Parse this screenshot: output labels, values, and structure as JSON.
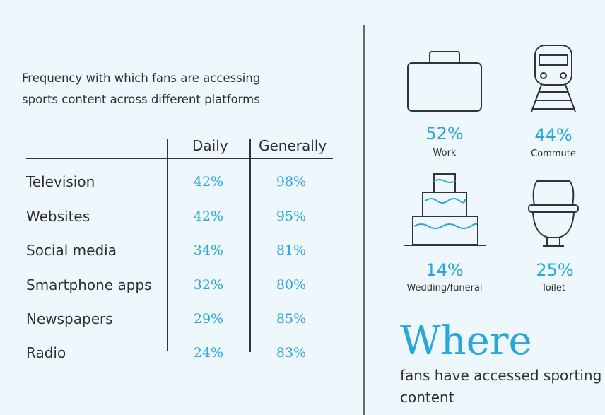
{
  "intro": {
    "line1": "Frequency with which fans are accessing",
    "line2": "sports content across different platforms"
  },
  "table": {
    "headers": [
      "Daily",
      "Generally"
    ],
    "rows": [
      {
        "label": "Television",
        "daily": "42%",
        "generally": "98%"
      },
      {
        "label": "Websites",
        "daily": "42%",
        "generally": "95%"
      },
      {
        "label": "Social media",
        "daily": "34%",
        "generally": "81%"
      },
      {
        "label": "Smartphone apps",
        "daily": "32%",
        "generally": "80%"
      },
      {
        "label": "Newspapers",
        "daily": "29%",
        "generally": "85%"
      },
      {
        "label": "Radio",
        "daily": "24%",
        "generally": "83%"
      }
    ]
  },
  "places": [
    {
      "pct": "52%",
      "label": "Work",
      "icon": "briefcase-icon"
    },
    {
      "pct": "44%",
      "label": "Commute",
      "icon": "train-icon"
    },
    {
      "pct": "14%",
      "label": "Wedding/funeral",
      "icon": "cake-icon"
    },
    {
      "pct": "25%",
      "label": "Toilet",
      "icon": "toilet-icon"
    }
  ],
  "where": {
    "title": "Where",
    "subtitle": "fans have accessed sporting content"
  },
  "colors": {
    "accent": "#2aa7d9",
    "background": "#eef7fb",
    "text": "#2f2f2f"
  },
  "chart_data": {
    "type": "table",
    "columns": [
      "Daily",
      "Generally"
    ],
    "rows": [
      "Television",
      "Websites",
      "Social media",
      "Smartphone apps",
      "Newspapers",
      "Radio"
    ],
    "values": [
      [
        42,
        98
      ],
      [
        42,
        95
      ],
      [
        34,
        81
      ],
      [
        32,
        80
      ],
      [
        29,
        85
      ],
      [
        24,
        83
      ]
    ],
    "places": {
      "categories": [
        "Work",
        "Commute",
        "Wedding/funeral",
        "Toilet"
      ],
      "values": [
        52,
        44,
        14,
        25
      ]
    }
  }
}
